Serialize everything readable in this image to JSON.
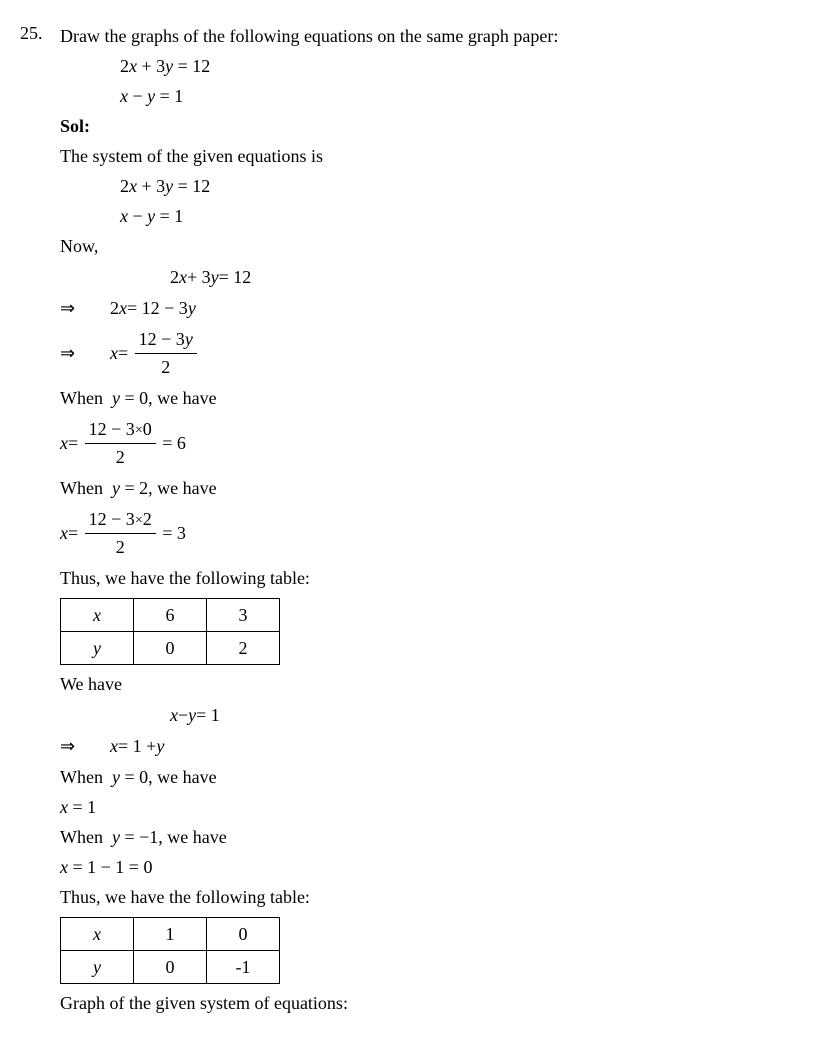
{
  "question": {
    "number": "25.",
    "prompt": "Draw the graphs of the following equations on the same graph paper:",
    "eq1": "2x + 3y = 12",
    "eq2": "x − y = 1"
  },
  "sol": {
    "label": "Sol:",
    "intro": "The system of the given equations is",
    "eq1": "2x + 3y = 12",
    "eq2": "x − y = 1",
    "now": "Now,",
    "step1": "2x + 3y = 12",
    "step2": "2x = 12 − 3y",
    "step3_lhs": "x =",
    "step3_num": "12 − 3y",
    "step3_den": "2",
    "when_y0": "When  y = 0, we have",
    "calc1_lhs": "x =",
    "calc1_num": "12 − 3×0",
    "calc1_den": "2",
    "calc1_res": "= 6",
    "when_y2": "When  y = 2, we have",
    "calc2_lhs": "x =",
    "calc2_num": "12 − 3×2",
    "calc2_den": "2",
    "calc2_res": "= 3",
    "table_intro": "Thus, we have the following table:",
    "table1": {
      "r1": [
        "x",
        "6",
        "3"
      ],
      "r2": [
        "y",
        "0",
        "2"
      ]
    },
    "wehave": "We have",
    "eq2a": "x − y = 1",
    "eq2b": "x = 1 + y",
    "when_y0b": "When  y = 0, we have",
    "res_x1": "x = 1",
    "when_ym1": "When  y = −1, we have",
    "res_x0": "x = 1 − 1 = 0",
    "table_intro2": "Thus, we have the following table:",
    "table2": {
      "r1": [
        "x",
        "1",
        "0"
      ],
      "r2": [
        "y",
        "0",
        "-1"
      ]
    },
    "graph_line": "Graph of the given system of equations:"
  },
  "arrow": "⇒"
}
